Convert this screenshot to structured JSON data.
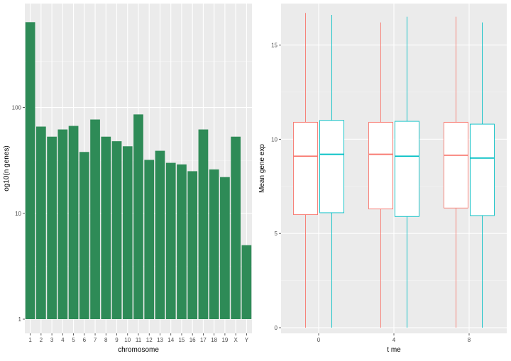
{
  "chart_data": [
    {
      "type": "bar",
      "xlabel": "chromosome",
      "ylabel": "og10(n genes)",
      "yscale": "log10",
      "ylim": [
        1,
        750
      ],
      "yticks": [
        1,
        10,
        100
      ],
      "ytick_labels": [
        "1",
        "10",
        "100"
      ],
      "categories": [
        "1",
        "2",
        "3",
        "4",
        "5",
        "6",
        "7",
        "8",
        "9",
        "10",
        "11",
        "12",
        "13",
        "14",
        "15",
        "16",
        "17",
        "18",
        "19",
        "X",
        "Y"
      ],
      "values": [
        640,
        66,
        53,
        62,
        67,
        38,
        77,
        53,
        48,
        43,
        86,
        32,
        39,
        30,
        29,
        25,
        62,
        26,
        22,
        53,
        5
      ],
      "bar_color": "#2e8b57",
      "grid": true
    },
    {
      "type": "boxplot",
      "xlabel": "t me",
      "ylabel": "Mean gene exp",
      "ylim": [
        -0.3,
        17.2
      ],
      "yticks": [
        0,
        5,
        10,
        15
      ],
      "ytick_labels": [
        "0",
        "5",
        "10",
        "15"
      ],
      "categories": [
        "0",
        "4",
        "8"
      ],
      "series": [
        {
          "color": "#f8766d",
          "boxes": [
            {
              "min": 0,
              "q1": 6.0,
              "median": 9.1,
              "q3": 10.9,
              "max": 16.7
            },
            {
              "min": 0,
              "q1": 6.3,
              "median": 9.2,
              "q3": 10.9,
              "max": 16.2
            },
            {
              "min": 0,
              "q1": 6.35,
              "median": 9.15,
              "q3": 10.9,
              "max": 16.5
            }
          ]
        },
        {
          "color": "#00bfc4",
          "boxes": [
            {
              "min": 0,
              "q1": 6.1,
              "median": 9.2,
              "q3": 11.0,
              "max": 16.6
            },
            {
              "min": 0,
              "q1": 5.9,
              "median": 9.1,
              "q3": 10.95,
              "max": 16.5
            },
            {
              "min": 0,
              "q1": 5.95,
              "median": 9.0,
              "q3": 10.8,
              "max": 16.2
            }
          ]
        }
      ],
      "grid": true
    }
  ]
}
